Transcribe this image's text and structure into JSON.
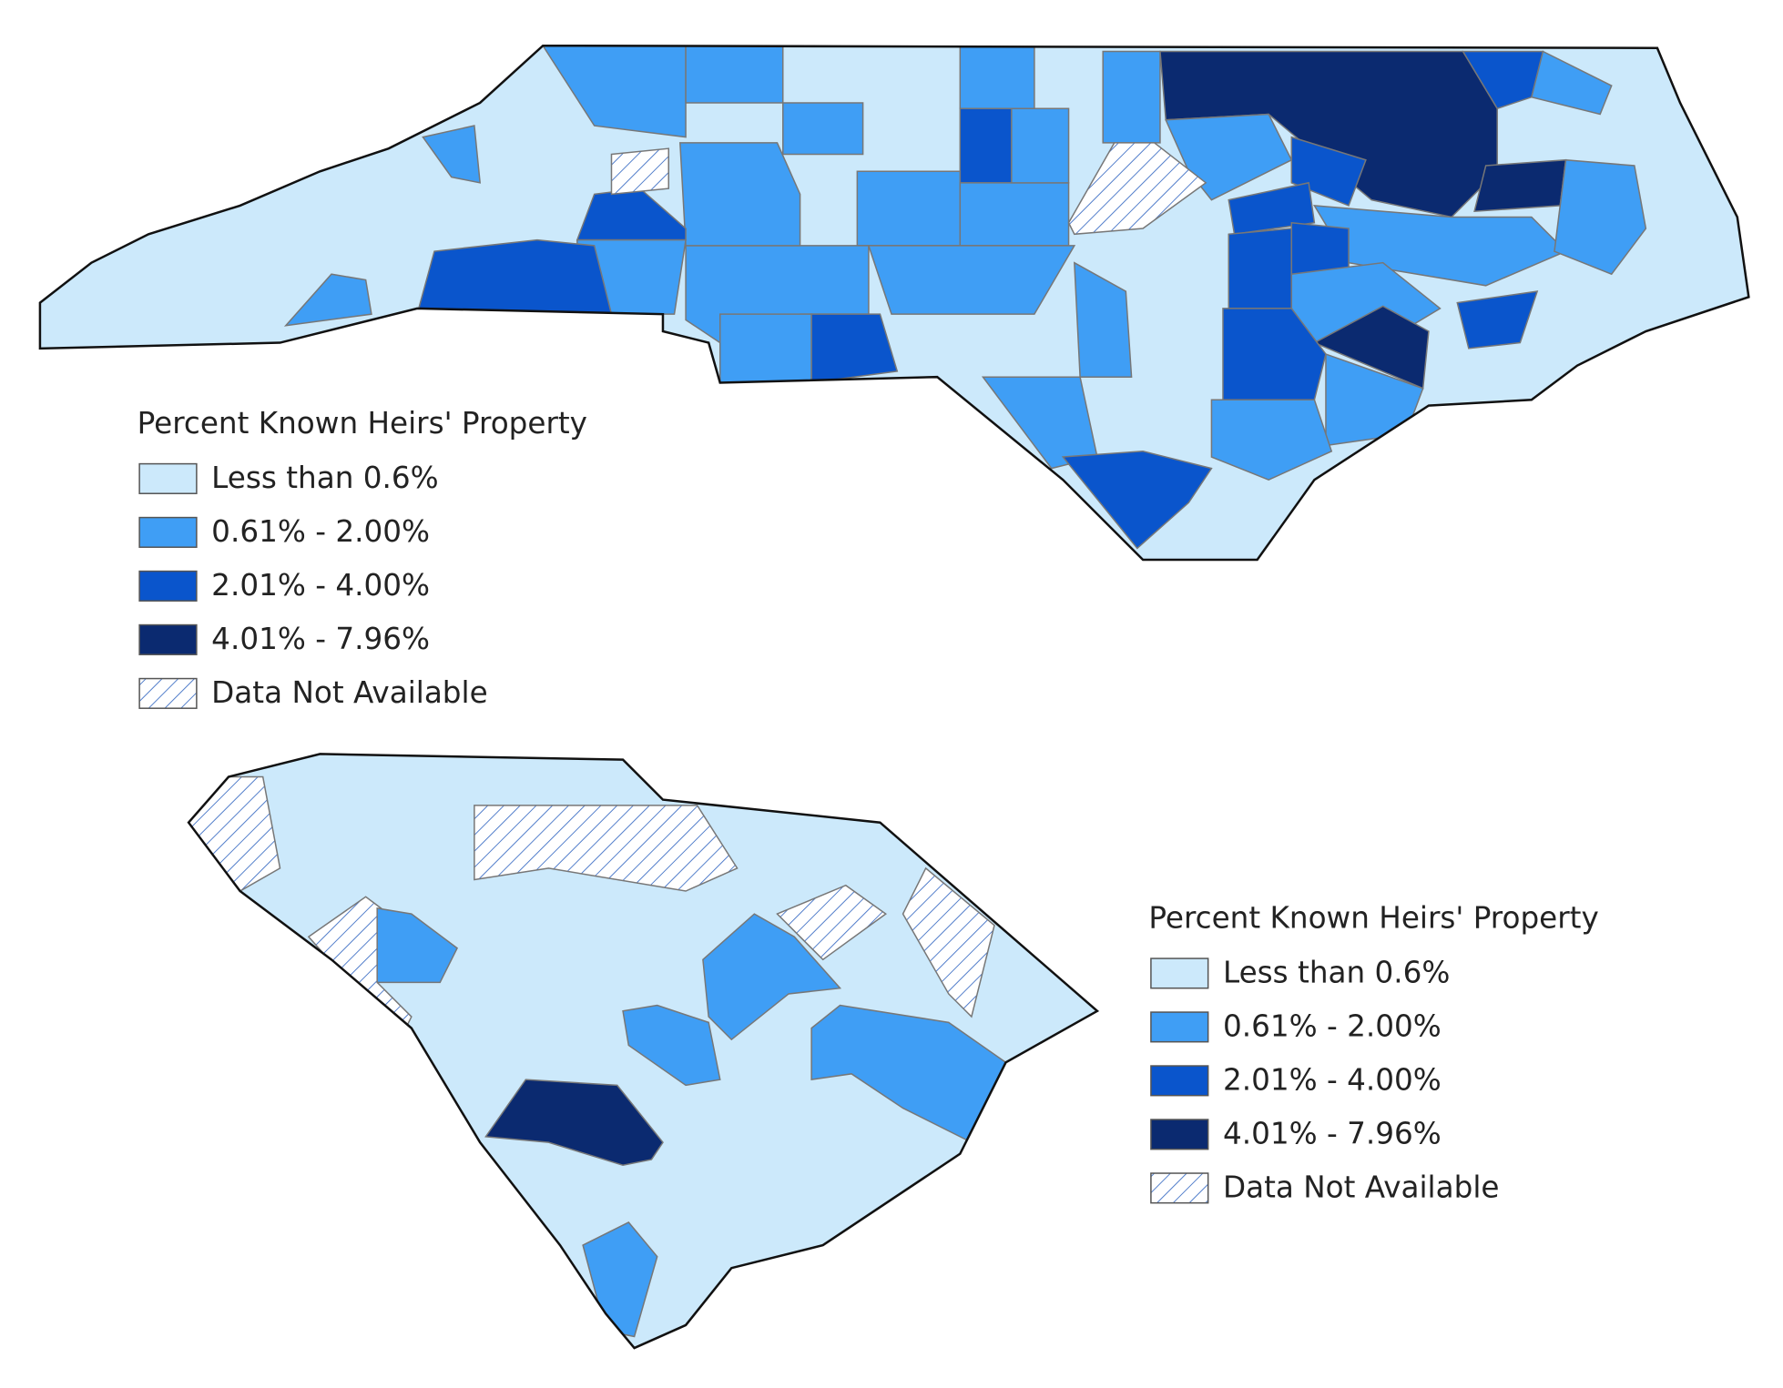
{
  "legends": [
    {
      "title": "Percent Known Heirs' Property",
      "items": [
        "Less than 0.6%",
        "0.61% - 2.00%",
        "2.01% - 4.00%",
        "4.01% - 7.96%",
        "Data Not Available"
      ]
    },
    {
      "title": "Percent Known Heirs' Property",
      "items": [
        "Less than 0.6%",
        "0.61% - 2.00%",
        "2.01% - 4.00%",
        "4.01% - 7.96%",
        "Data Not Available"
      ]
    }
  ]
}
